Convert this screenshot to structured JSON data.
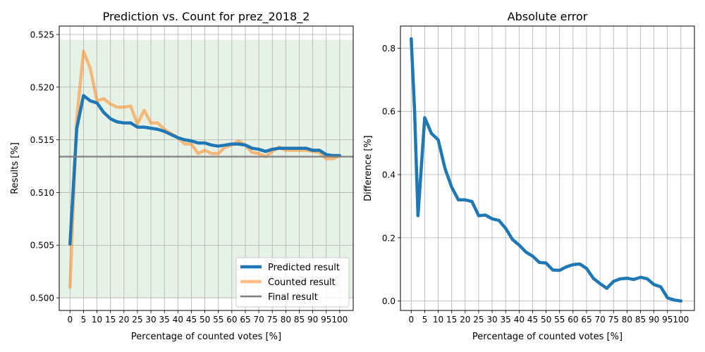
{
  "charts": [
    {
      "title": "Prediction vs. Count for prez_2018_2",
      "xlabel": "Percentage of counted votes [%]",
      "ylabel": "Results [%]"
    },
    {
      "title": "Absolute error",
      "xlabel": "Percentage of counted votes [%]",
      "ylabel": "Difference [%]"
    }
  ],
  "legend": {
    "predicted": "Predicted result",
    "counted": "Counted result",
    "final": "Final result"
  },
  "colors": {
    "predicted": "#1f77b4",
    "counted": "#ff7f0e",
    "final": "#7f7f7f",
    "band": "#d3e8d3"
  },
  "chart_data": [
    {
      "type": "line",
      "title": "Prediction vs. Count for prez_2018_2",
      "xlabel": "Percentage of counted votes [%]",
      "ylabel": "Results [%]",
      "xlim": [
        -4,
        105
      ],
      "ylim": [
        0.4988,
        0.5258
      ],
      "xticks": [
        0,
        5,
        10,
        15,
        20,
        25,
        30,
        35,
        40,
        45,
        50,
        55,
        60,
        65,
        70,
        75,
        80,
        85,
        90,
        95,
        100
      ],
      "yticks": [
        0.5,
        0.505,
        0.51,
        0.515,
        0.52,
        0.525
      ],
      "ytick_labels": [
        "0.500",
        "0.505",
        "0.510",
        "0.515",
        "0.520",
        "0.525"
      ],
      "grid": true,
      "legend_position": "bottom-right",
      "band": {
        "x": [
          -4,
          105
        ],
        "y": [
          0.5,
          0.5245
        ]
      },
      "final_result": 0.5134,
      "x": [
        0,
        2.5,
        5,
        7.5,
        10,
        12.5,
        15,
        17.5,
        20,
        22.5,
        25,
        27.5,
        30,
        32.5,
        35,
        37.5,
        40,
        42.5,
        45,
        47.5,
        50,
        52.5,
        55,
        57.5,
        60,
        62.5,
        65,
        67.5,
        70,
        72.5,
        75,
        77.5,
        80,
        82.5,
        85,
        87.5,
        90,
        92.5,
        95,
        97.5,
        100
      ],
      "series": [
        {
          "name": "Predicted result",
          "values": [
            0.5051,
            0.5161,
            0.5192,
            0.5187,
            0.5185,
            0.5176,
            0.517,
            0.5167,
            0.5166,
            0.5166,
            0.5162,
            0.5162,
            0.5161,
            0.516,
            0.5158,
            0.5155,
            0.5152,
            0.515,
            0.5149,
            0.5147,
            0.5147,
            0.5145,
            0.5144,
            0.5145,
            0.5146,
            0.5146,
            0.5145,
            0.5142,
            0.5141,
            0.5139,
            0.5141,
            0.5142,
            0.5142,
            0.5142,
            0.5142,
            0.5142,
            0.514,
            0.514,
            0.5136,
            0.5135,
            0.5135
          ]
        },
        {
          "name": "Counted result",
          "values": [
            0.501,
            0.517,
            0.5234,
            0.5218,
            0.5187,
            0.5189,
            0.5184,
            0.5181,
            0.5181,
            0.5182,
            0.5165,
            0.5178,
            0.5166,
            0.5166,
            0.516,
            0.5156,
            0.5152,
            0.5146,
            0.5146,
            0.5137,
            0.514,
            0.5137,
            0.5137,
            0.5143,
            0.5145,
            0.5149,
            0.5145,
            0.5138,
            0.5137,
            0.5134,
            0.5139,
            0.5143,
            0.514,
            0.514,
            0.514,
            0.514,
            0.5139,
            0.5138,
            0.5132,
            0.5132,
            0.5135
          ]
        }
      ]
    },
    {
      "type": "line",
      "title": "Absolute error",
      "xlabel": "Percentage of counted votes [%]",
      "ylabel": "Difference [%]",
      "xlim": [
        -4,
        105
      ],
      "ylim": [
        -0.03,
        0.87
      ],
      "xticks": [
        0,
        5,
        10,
        15,
        20,
        25,
        30,
        35,
        40,
        45,
        50,
        55,
        60,
        65,
        70,
        75,
        80,
        85,
        90,
        95,
        100
      ],
      "yticks": [
        0.0,
        0.2,
        0.4,
        0.6,
        0.8
      ],
      "ytick_labels": [
        "0.0",
        "0.2",
        "0.4",
        "0.6",
        "0.8"
      ],
      "grid": true,
      "x": [
        0,
        1.25,
        2.5,
        5,
        7.5,
        10,
        12.5,
        15,
        17.5,
        20,
        22.5,
        25,
        27.5,
        30,
        32.5,
        35,
        37.5,
        40,
        42.5,
        45,
        47.5,
        50,
        52.5,
        55,
        57.5,
        60,
        62.5,
        65,
        67.5,
        70,
        72.5,
        75,
        77.5,
        80,
        82.5,
        85,
        87.5,
        90,
        92.5,
        95,
        97.5,
        100
      ],
      "series": [
        {
          "name": "",
          "values": [
            0.83,
            0.6,
            0.27,
            0.58,
            0.53,
            0.51,
            0.42,
            0.36,
            0.32,
            0.32,
            0.315,
            0.27,
            0.272,
            0.26,
            0.255,
            0.23,
            0.195,
            0.177,
            0.155,
            0.142,
            0.122,
            0.12,
            0.098,
            0.097,
            0.108,
            0.115,
            0.117,
            0.103,
            0.072,
            0.055,
            0.04,
            0.062,
            0.07,
            0.072,
            0.068,
            0.075,
            0.07,
            0.052,
            0.045,
            0.01,
            0.003,
            0.0
          ]
        }
      ]
    }
  ]
}
